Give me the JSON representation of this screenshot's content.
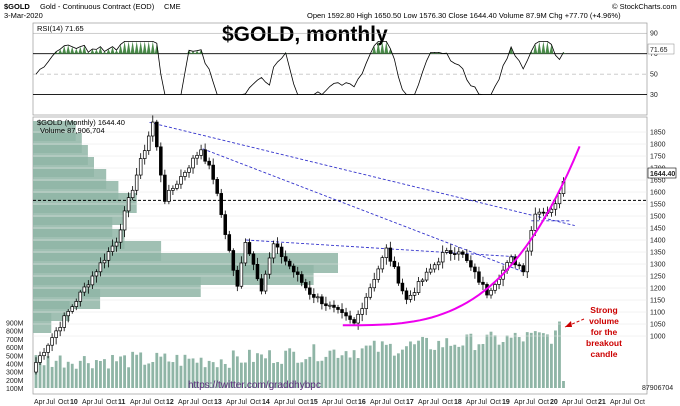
{
  "header": {
    "symbol": "$GOLD",
    "description": "Gold - Continuous Contract (EOD)",
    "exchange": "CME",
    "date": "3-Mar-2020",
    "ohlc": "Open 1592.80  High 1650.50  Low 1576.30  Close 1644.40  Volume 87.9M  Chg +77.70 (+4.96%)",
    "watermark": "© StockCharts.com"
  },
  "title_overlay": "$GOLD, monthly",
  "rsi_panel": {
    "label": "RSI(14) 71.65",
    "value_badge": "71.65",
    "ticks": [
      "90",
      "70",
      "50",
      "30"
    ]
  },
  "price_panel": {
    "label": "$GOLD (Monthly) 1644.40",
    "volume_label": "Volume 87,906,704",
    "last_price_badge": "1644.40",
    "volume_badge": "87906704",
    "price_ticks": [
      "1850",
      "1800",
      "1750",
      "1700",
      "1650",
      "1600",
      "1550",
      "1500",
      "1450",
      "1400",
      "1350",
      "1300",
      "1250",
      "1200",
      "1150",
      "1100",
      "1050",
      "1000"
    ],
    "volume_ticks": [
      "900M",
      "800M",
      "700M",
      "600M",
      "500M",
      "400M",
      "300M",
      "200M",
      "100M"
    ],
    "year_labels": [
      "Apr",
      "Jul",
      "Oct",
      "10",
      "Apr",
      "Jul",
      "Oct",
      "11",
      "Apr",
      "Jul",
      "Oct",
      "12",
      "Apr",
      "Jul",
      "Oct",
      "13",
      "Apr",
      "Jul",
      "Oct",
      "14",
      "Apr",
      "Jul",
      "Oct",
      "15",
      "Apr",
      "Jul",
      "Oct",
      "16",
      "Apr",
      "Jul",
      "Oct",
      "17",
      "Apr",
      "Jul",
      "Oct",
      "18",
      "Apr",
      "Jul",
      "Oct",
      "19",
      "Apr",
      "Jul",
      "Oct",
      "20",
      "Apr",
      "Jul",
      "Oct",
      "21",
      "Apr",
      "Jul",
      "Oct"
    ]
  },
  "annotation": "Strong volume for the breakout candle",
  "annotation_lines": [
    "Strong",
    "volume",
    "for the",
    "breakout",
    "candle"
  ],
  "twitter": "https://twitter.com/graddhybpc",
  "colors": {
    "up_candle": "#ffffff",
    "down_candle": "#000000",
    "trendline": "#3333cc",
    "arc": "#ee00ee",
    "volume_bar": "#8fb5a6",
    "annotation": "#cc0000"
  },
  "chart_data": {
    "type": "candlestick",
    "title": "$GOLD, monthly",
    "x_range": [
      "2009-04",
      "2021-10"
    ],
    "ylim": [
      1000,
      1900
    ],
    "rsi_ylim": [
      10,
      100
    ],
    "anchors": [
      {
        "date": "2009-04",
        "price": 890
      },
      {
        "date": "2009-12",
        "price": 1100
      },
      {
        "date": "2010-12",
        "price": 1400
      },
      {
        "date": "2011-09",
        "price": 1890
      },
      {
        "date": "2011-12",
        "price": 1570
      },
      {
        "date": "2012-09",
        "price": 1780
      },
      {
        "date": "2012-12",
        "price": 1660
      },
      {
        "date": "2013-06",
        "price": 1200
      },
      {
        "date": "2013-08",
        "price": 1400
      },
      {
        "date": "2013-12",
        "price": 1200
      },
      {
        "date": "2014-03",
        "price": 1380
      },
      {
        "date": "2014-12",
        "price": 1180
      },
      {
        "date": "2015-11",
        "price": 1050
      },
      {
        "date": "2016-07",
        "price": 1360
      },
      {
        "date": "2016-12",
        "price": 1150
      },
      {
        "date": "2017-09",
        "price": 1340
      },
      {
        "date": "2018-01",
        "price": 1360
      },
      {
        "date": "2018-08",
        "price": 1180
      },
      {
        "date": "2019-02",
        "price": 1320
      },
      {
        "date": "2019-05",
        "price": 1280
      },
      {
        "date": "2019-08",
        "price": 1520
      },
      {
        "date": "2019-12",
        "price": 1520
      },
      {
        "date": "2020-03",
        "price": 1644
      }
    ],
    "horizontal_line": 1565,
    "volume_profile_zones": [
      {
        "price": 1850,
        "rel": 0.14
      },
      {
        "price": 1800,
        "rel": 0.16
      },
      {
        "price": 1750,
        "rel": 0.18
      },
      {
        "price": 1700,
        "rel": 0.2
      },
      {
        "price": 1650,
        "rel": 0.24
      },
      {
        "price": 1600,
        "rel": 0.28
      },
      {
        "price": 1550,
        "rel": 0.34
      },
      {
        "price": 1500,
        "rel": 0.3
      },
      {
        "price": 1450,
        "rel": 0.26
      },
      {
        "price": 1400,
        "rel": 0.3
      },
      {
        "price": 1350,
        "rel": 0.42
      },
      {
        "price": 1300,
        "rel": 1.0
      },
      {
        "price": 1250,
        "rel": 0.92
      },
      {
        "price": 1200,
        "rel": 0.55
      },
      {
        "price": 1150,
        "rel": 0.22
      },
      {
        "price": 1100,
        "rel": 0.12
      },
      {
        "price": 1050,
        "rel": 0.06
      }
    ]
  }
}
